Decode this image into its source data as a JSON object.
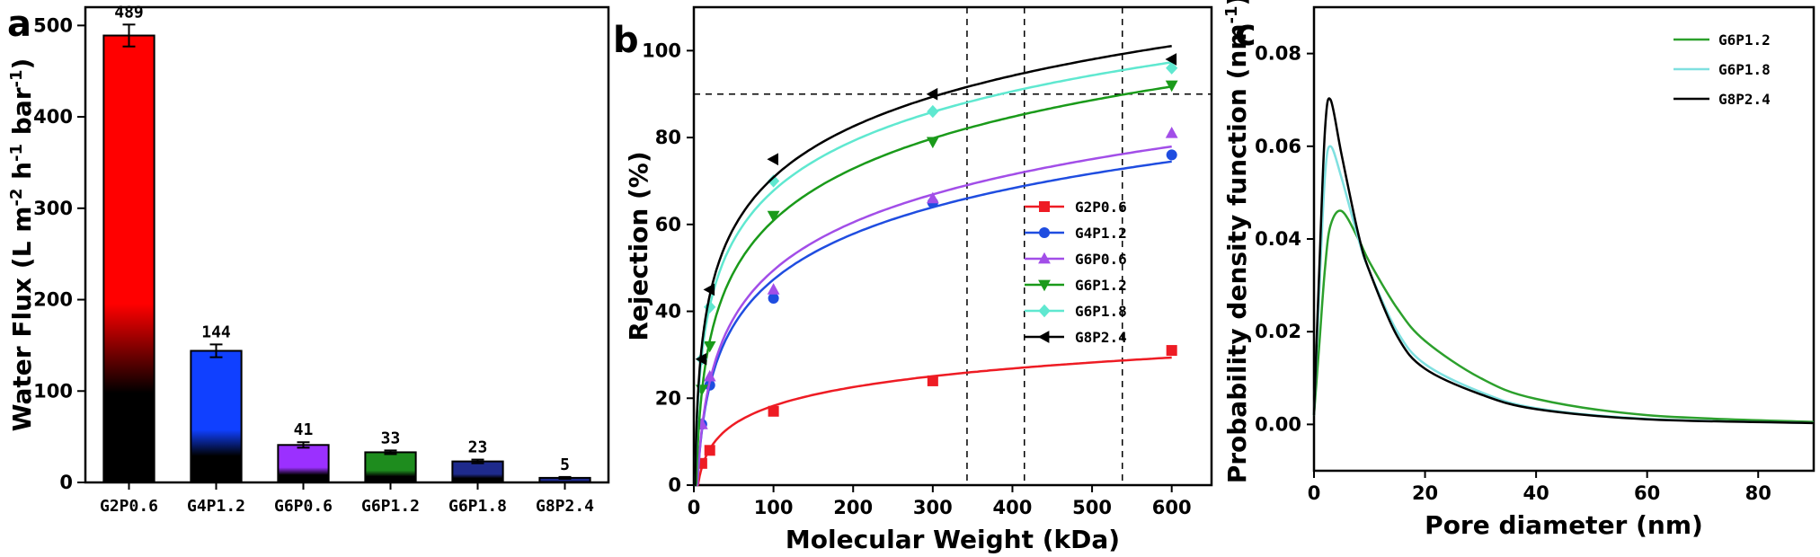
{
  "panels": [
    {
      "letter": "a"
    },
    {
      "letter": "b"
    },
    {
      "letter": "c"
    }
  ],
  "chart_data": [
    {
      "type": "bar",
      "ylabel": "Water Flux (L m-2 h-1 bar-1)",
      "ylabel_parts": {
        "prefix": "Water Flux (L m",
        "sup1": "-2",
        "mid1": " h",
        "sup2": "-1",
        "mid2": " bar",
        "sup3": "-1",
        "suffix": ")"
      },
      "xlabel": "",
      "ylim": [
        0,
        520
      ],
      "yticks": [
        0,
        100,
        200,
        300,
        400,
        500
      ],
      "categories": [
        "G2P0.6",
        "G4P1.2",
        "G6P0.6",
        "G6P1.2",
        "G6P1.8",
        "G8P2.4"
      ],
      "values": [
        489,
        144,
        41,
        33,
        23,
        5
      ],
      "errors": [
        12,
        7,
        3,
        2,
        2,
        1
      ],
      "data_labels": [
        "489",
        "144",
        "41",
        "33",
        "23",
        "5"
      ],
      "colors": [
        "#ff0000",
        "#1040ff",
        "#9b30ff",
        "#1e8c1e",
        "#1e2a8c",
        "#1e2a8c"
      ]
    },
    {
      "type": "scatter",
      "xlabel": "Molecular Weight (kDa)",
      "ylabel": "Rejection (%)",
      "xlim": [
        0,
        650
      ],
      "ylim": [
        0,
        110
      ],
      "xticks": [
        0,
        100,
        200,
        300,
        400,
        500,
        600
      ],
      "yticks": [
        0,
        20,
        40,
        60,
        80,
        100
      ],
      "fit_curves": true,
      "reference_lines": {
        "horizontal_y": 90,
        "vertical_x": [
          343,
          415,
          538
        ]
      },
      "legend_position": "center-right",
      "series": [
        {
          "name": "G2P0.6",
          "color": "#ee1c24",
          "marker": "square",
          "x": [
            10,
            20,
            100,
            300,
            600
          ],
          "y": [
            5,
            8,
            17,
            24,
            31
          ]
        },
        {
          "name": "G4P1.2",
          "color": "#1f4de0",
          "marker": "circle",
          "x": [
            10,
            20,
            100,
            300,
            600
          ],
          "y": [
            14,
            23,
            43,
            65,
            76
          ]
        },
        {
          "name": "G6P0.6",
          "color": "#a24ee8",
          "marker": "triangle-up",
          "x": [
            10,
            20,
            100,
            300,
            600
          ],
          "y": [
            14,
            25,
            45,
            66,
            81
          ]
        },
        {
          "name": "G6P1.2",
          "color": "#1a9a1a",
          "marker": "triangle-down",
          "x": [
            10,
            20,
            100,
            300,
            600
          ],
          "y": [
            22,
            32,
            62,
            79,
            92
          ]
        },
        {
          "name": "G6P1.8",
          "color": "#5fe8d0",
          "marker": "diamond",
          "x": [
            10,
            20,
            100,
            300,
            600
          ],
          "y": [
            29,
            41,
            70,
            86,
            96
          ]
        },
        {
          "name": "G8P2.4",
          "color": "#000000",
          "marker": "triangle-left",
          "x": [
            10,
            20,
            100,
            300,
            600
          ],
          "y": [
            29,
            45,
            75,
            90,
            98
          ]
        }
      ]
    },
    {
      "type": "line",
      "xlabel": "Pore diameter (nm)",
      "ylabel": "Probability density function (nm-1)",
      "ylabel_parts": {
        "prefix": "Probability density function (nm",
        "sup1": "-1",
        "suffix": ")"
      },
      "xlim": [
        0,
        90
      ],
      "ylim": [
        -0.01,
        0.09
      ],
      "xticks": [
        0,
        20,
        40,
        60,
        80
      ],
      "yticks": [
        0.0,
        0.02,
        0.04,
        0.06,
        0.08
      ],
      "ytick_labels": [
        "0.00",
        "0.02",
        "0.04",
        "0.06",
        "0.08"
      ],
      "legend_position": "top-right",
      "series": [
        {
          "name": "G6P1.2",
          "color": "#2ca02c",
          "mode_nm": 5.0,
          "peak": 0.046,
          "x": [
            0,
            1,
            2,
            3,
            5,
            8,
            10,
            15,
            20,
            30,
            40,
            60,
            90
          ],
          "y": [
            0.002,
            0.018,
            0.034,
            0.043,
            0.046,
            0.04,
            0.035,
            0.025,
            0.018,
            0.01,
            0.0055,
            0.002,
            0.0005
          ]
        },
        {
          "name": "G6P1.8",
          "color": "#7fe0e0",
          "mode_nm": 3.2,
          "peak": 0.06,
          "x": [
            0,
            1,
            2,
            3,
            5,
            8,
            10,
            15,
            20,
            30,
            40,
            60,
            90
          ],
          "y": [
            0.002,
            0.03,
            0.054,
            0.06,
            0.053,
            0.04,
            0.033,
            0.02,
            0.013,
            0.007,
            0.0035,
            0.0012,
            0.0003
          ]
        },
        {
          "name": "G8P2.4",
          "color": "#000000",
          "mode_nm": 3.0,
          "peak": 0.07,
          "x": [
            0,
            1,
            2,
            3,
            5,
            8,
            10,
            15,
            20,
            30,
            40,
            60,
            90
          ],
          "y": [
            0.002,
            0.035,
            0.064,
            0.07,
            0.058,
            0.041,
            0.033,
            0.019,
            0.012,
            0.0065,
            0.0033,
            0.0011,
            0.0003
          ]
        }
      ]
    }
  ]
}
